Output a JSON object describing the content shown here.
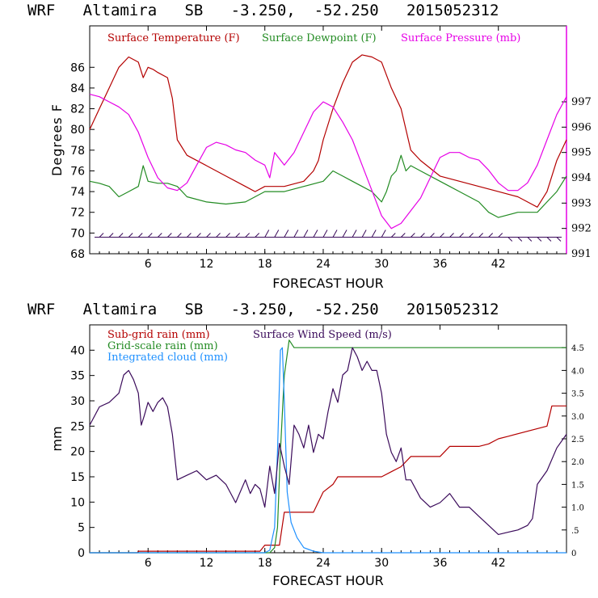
{
  "chart_data": [
    {
      "type": "line",
      "title": "WRF   Altamira   SB   -3.250,  -52.250   2015052312",
      "xlabel": "FORECAST HOUR",
      "ylabel": "Degrees F",
      "xlim": [
        0,
        49
      ],
      "ylim": [
        68,
        90
      ],
      "y2lim": [
        991,
        1000
      ],
      "xticks": [
        6,
        12,
        18,
        24,
        30,
        36,
        42
      ],
      "xtick_labels": [
        "6",
        "12",
        "18",
        "24",
        "30",
        "36",
        "42"
      ],
      "yticks": [
        68,
        70,
        72,
        74,
        76,
        78,
        80,
        82,
        84,
        86
      ],
      "ytick_labels": [
        "68",
        "70",
        "72",
        "74",
        "76",
        "78",
        "80",
        "82",
        "84",
        "86"
      ],
      "y2ticks": [
        991,
        992,
        993,
        994,
        995,
        996,
        997
      ],
      "y2tick_labels": [
        "991",
        "992",
        "993",
        "994",
        "995",
        "996",
        "997"
      ],
      "legend": [
        "Surface Temperature (F)",
        "Surface Dewpoint (F)",
        "Surface Pressure (mb)"
      ],
      "series": [
        {
          "name": "Surface Temperature (F)",
          "color": "#b40000",
          "axis": "left",
          "x": [
            0,
            1,
            2,
            3,
            4,
            5,
            5.5,
            6,
            6.5,
            7,
            8,
            8.5,
            9,
            10,
            12,
            14,
            16,
            17,
            18,
            20,
            22,
            23,
            23.5,
            24,
            25,
            26,
            27,
            28,
            29,
            30,
            31,
            32,
            33,
            34,
            36,
            38,
            40,
            42,
            44,
            45,
            46,
            47,
            48,
            49
          ],
          "values": [
            80,
            82,
            84,
            86,
            87,
            86.5,
            85,
            86,
            85.8,
            85.5,
            85,
            83,
            79,
            77.5,
            76.5,
            75.5,
            74.5,
            74,
            74.5,
            74.5,
            75,
            76,
            77,
            79,
            82,
            84.5,
            86.5,
            87.2,
            87,
            86.5,
            84,
            82,
            78,
            77,
            75.5,
            75,
            74.5,
            74,
            73.5,
            73,
            72.5,
            74,
            77,
            79
          ]
        },
        {
          "name": "Surface Dewpoint (F)",
          "color": "#228b22",
          "axis": "left",
          "x": [
            0,
            1,
            2,
            3,
            4,
            5,
            5.5,
            6,
            7,
            8,
            9,
            10,
            12,
            14,
            16,
            18,
            20,
            22,
            24,
            25,
            26,
            27,
            28,
            29,
            30,
            30.5,
            31,
            31.5,
            32,
            32.5,
            33,
            34,
            36,
            37,
            38,
            40,
            41,
            42,
            44,
            45,
            46,
            47,
            48,
            49
          ],
          "values": [
            75,
            74.8,
            74.5,
            73.5,
            74,
            74.5,
            76.5,
            75,
            74.8,
            74.8,
            74.5,
            73.5,
            73,
            72.8,
            73,
            74,
            74,
            74.5,
            75,
            76,
            75.5,
            75,
            74.5,
            74,
            73,
            74,
            75.5,
            76,
            77.5,
            76,
            76.5,
            76,
            75,
            74.5,
            74,
            73,
            72,
            71.5,
            72,
            72,
            72,
            73,
            74,
            75.5
          ]
        },
        {
          "name": "Surface Pressure (mb)",
          "color": "#e600e6",
          "axis": "right",
          "x": [
            0,
            1,
            2,
            3,
            4,
            5,
            6,
            7,
            8,
            9,
            10,
            11,
            12,
            13,
            14,
            15,
            16,
            17,
            18,
            18.5,
            19,
            20,
            21,
            22,
            23,
            24,
            25,
            26,
            27,
            28,
            29,
            30,
            31,
            32,
            33,
            34,
            35,
            36,
            37,
            38,
            39,
            40,
            41,
            42,
            43,
            44,
            45,
            46,
            47,
            48,
            49
          ],
          "values": [
            997.3,
            997.2,
            997,
            996.8,
            996.5,
            995.8,
            994.8,
            994,
            993.6,
            993.5,
            993.8,
            994.5,
            995.2,
            995.4,
            995.3,
            995.1,
            995.0,
            994.7,
            994.5,
            994.0,
            995.0,
            994.5,
            995.0,
            995.8,
            996.6,
            997.0,
            996.8,
            996.2,
            995.5,
            994.5,
            993.5,
            992.5,
            992.0,
            992.2,
            992.7,
            993.2,
            994.0,
            994.8,
            995.0,
            995.0,
            994.8,
            994.7,
            994.3,
            993.8,
            993.5,
            993.5,
            993.8,
            994.5,
            995.5,
            996.5,
            997.2
          ]
        }
      ],
      "wind_barbs": {
        "direction": "easterly",
        "hours": [
          1,
          2,
          3,
          4,
          5,
          6,
          7,
          8,
          9,
          10,
          11,
          12,
          13,
          14,
          15,
          16,
          17,
          18,
          19,
          20,
          21,
          22,
          23,
          24,
          25,
          26,
          27,
          28,
          29,
          30,
          31,
          32,
          33,
          34,
          35,
          36,
          37,
          38,
          39,
          40,
          41,
          42,
          43,
          44,
          45,
          46,
          47,
          48
        ]
      }
    },
    {
      "type": "line",
      "title": "WRF   Altamira   SB   -3.250,  -52.250   2015052312",
      "xlabel": "FORECAST HOUR",
      "ylabel": "mm",
      "xlim": [
        0,
        49
      ],
      "ylim": [
        0,
        45
      ],
      "y2lim": [
        0,
        5.0
      ],
      "xticks": [
        6,
        12,
        18,
        24,
        30,
        36,
        42
      ],
      "xtick_labels": [
        "6",
        "12",
        "18",
        "24",
        "30",
        "36",
        "42"
      ],
      "yticks": [
        0,
        5,
        10,
        15,
        20,
        25,
        30,
        35,
        40
      ],
      "ytick_labels": [
        "0",
        "5",
        "10",
        "15",
        "20",
        "25",
        "30",
        "35",
        "40"
      ],
      "y2ticks": [
        0,
        0.5,
        1.0,
        1.5,
        2.0,
        2.5,
        3.0,
        3.5,
        4.0,
        4.5
      ],
      "y2tick_labels": [
        "0",
        ".5",
        "1.0",
        "1.5",
        "2.0",
        "2.5",
        "3.0",
        "3.5",
        "4.0",
        "4.5"
      ],
      "legend": [
        "Sub-grid rain (mm)",
        "Surface Wind Speed (m/s)",
        "Grid-scale rain (mm)",
        "Integrated cloud (mm)"
      ],
      "series": [
        {
          "name": "Sub-grid rain (mm)",
          "color": "#b40000",
          "axis": "left",
          "x": [
            0,
            4.9,
            5,
            17.5,
            18,
            19.5,
            20,
            23,
            24,
            25,
            25.5,
            30,
            31,
            32,
            33,
            36,
            37,
            40,
            41,
            42,
            43,
            47,
            47.5,
            49
          ],
          "values": [
            0,
            0,
            0.3,
            0.3,
            1.5,
            1.5,
            8,
            8,
            12,
            13.5,
            15,
            15,
            16,
            17,
            19,
            19,
            21,
            21,
            21.5,
            22.5,
            23,
            25,
            29,
            29
          ]
        },
        {
          "name": "Grid-scale rain (mm)",
          "color": "#228b22",
          "axis": "left",
          "x": [
            0,
            18.5,
            19,
            19.3,
            19.6,
            20,
            20.5,
            21,
            30,
            49
          ],
          "values": [
            0,
            0,
            1,
            5,
            20,
            35,
            42,
            40.5,
            40.5,
            40.5
          ]
        },
        {
          "name": "Integrated cloud (mm)",
          "color": "#1e90ff",
          "axis": "left",
          "x": [
            0,
            18,
            18.5,
            19,
            19.3,
            19.6,
            19.8,
            20,
            20.3,
            20.7,
            21.3,
            22,
            23,
            24,
            49
          ],
          "values": [
            0,
            0,
            0.5,
            5,
            20,
            40,
            40.5,
            30,
            12,
            6,
            3,
            1,
            0.3,
            0,
            0
          ]
        },
        {
          "name": "Surface Wind Speed (m/s)",
          "color": "#3a0a5a",
          "axis": "right",
          "x": [
            0,
            1,
            2,
            3,
            3.5,
            4,
            4.5,
            5,
            5.3,
            5.6,
            6,
            6.5,
            7,
            7.5,
            8,
            8.5,
            9,
            10,
            11,
            12,
            13,
            14,
            15,
            16,
            16.5,
            17,
            17.5,
            18,
            18.5,
            19,
            19.5,
            20,
            20.5,
            21,
            21.5,
            22,
            22.5,
            23,
            23.5,
            24,
            24.5,
            25,
            25.5,
            26,
            26.5,
            27,
            27.5,
            28,
            28.5,
            29,
            29.5,
            30,
            30.5,
            31,
            31.5,
            32,
            32.5,
            33,
            34,
            35,
            36,
            37,
            38,
            39,
            40,
            41,
            42,
            43,
            44,
            45,
            45.5,
            46,
            47,
            48,
            49
          ],
          "values": [
            2.8,
            3.2,
            3.3,
            3.5,
            3.9,
            4.0,
            3.8,
            3.5,
            2.8,
            3.0,
            3.3,
            3.1,
            3.3,
            3.4,
            3.2,
            2.6,
            1.6,
            1.7,
            1.8,
            1.6,
            1.7,
            1.5,
            1.1,
            1.6,
            1.3,
            1.5,
            1.4,
            1.0,
            1.9,
            1.3,
            2.4,
            1.9,
            1.5,
            2.8,
            2.6,
            2.3,
            2.8,
            2.2,
            2.6,
            2.5,
            3.1,
            3.6,
            3.3,
            3.9,
            4.0,
            4.5,
            4.3,
            4.0,
            4.2,
            4.0,
            4.0,
            3.5,
            2.6,
            2.2,
            2.0,
            2.3,
            1.6,
            1.6,
            1.2,
            1.0,
            1.1,
            1.3,
            1.0,
            1.0,
            0.8,
            0.6,
            0.4,
            0.45,
            0.5,
            0.6,
            0.75,
            1.5,
            1.8,
            2.3,
            2.6
          ]
        }
      ]
    }
  ]
}
